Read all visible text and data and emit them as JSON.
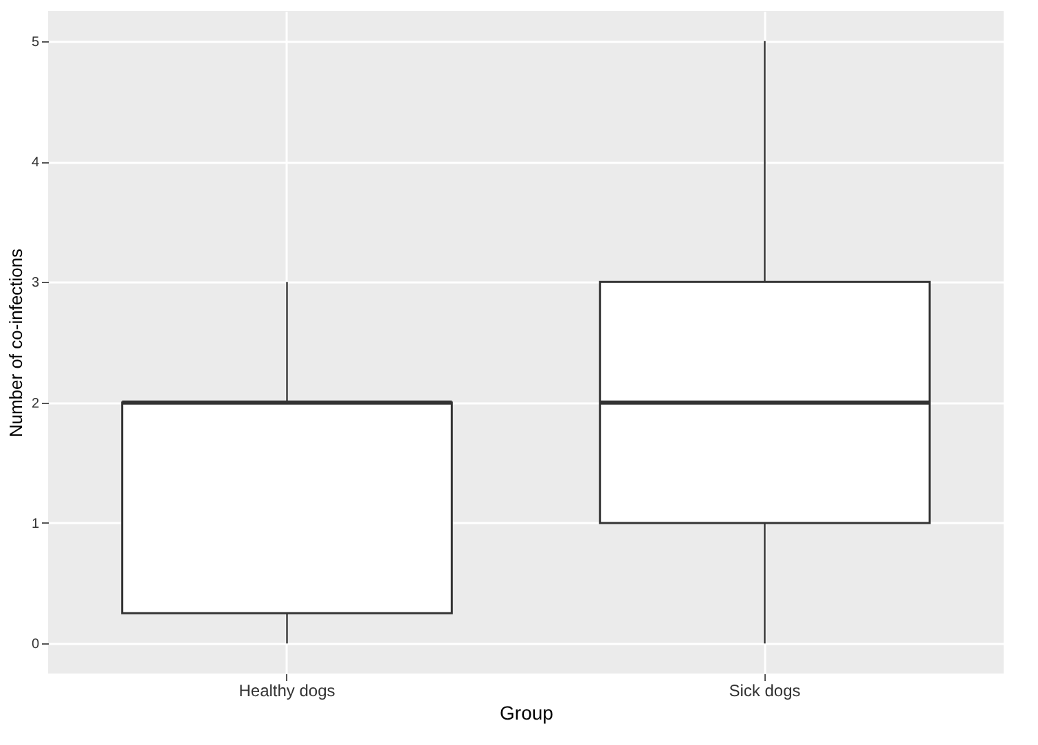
{
  "chart_data": {
    "type": "box",
    "xlabel": "Group",
    "ylabel": "Number of co-infections",
    "categories": [
      "Healthy dogs",
      "Sick dogs"
    ],
    "boxes": [
      {
        "low": 0,
        "q1": 0.25,
        "median": 2,
        "q3": 2,
        "high": 3
      },
      {
        "low": 0,
        "q1": 1,
        "median": 2,
        "q3": 3,
        "high": 5
      }
    ],
    "ylim": [
      -0.25,
      5.25
    ],
    "yticks": [
      0,
      1,
      2,
      3,
      4,
      5
    ],
    "grid": true
  }
}
